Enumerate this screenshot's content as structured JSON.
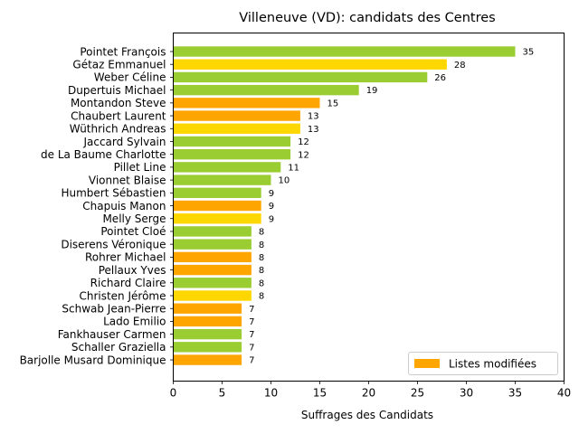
{
  "chart_data": {
    "type": "bar",
    "orientation": "horizontal",
    "title": "Villeneuve (VD): candidats des Centres",
    "xlabel": "Suffrages des Candidats",
    "ylabel": "",
    "xlim": [
      0,
      40
    ],
    "x_ticks": [
      0,
      5,
      10,
      15,
      20,
      25,
      30,
      35,
      40
    ],
    "grid": false,
    "legend_position": "bottom-right",
    "legend": [
      {
        "label": "Listes modifiées",
        "color": "#FFA500"
      }
    ],
    "categories": [
      "Pointet François",
      "Gétaz Emmanuel",
      "Weber Céline",
      "Dupertuis Michael",
      "Montandon Steve",
      "Chaubert Laurent",
      "Wüthrich Andreas",
      "Jaccard Sylvain",
      "de La Baume Charlotte",
      "Pillet Line",
      "Vionnet Blaise",
      "Humbert Sébastien",
      "Chapuis Manon",
      "Melly Serge",
      "Pointet Cloé",
      "Diserens Véronique",
      "Rohrer Michael",
      "Pellaux Yves",
      "Richard Claire",
      "Christen Jérôme",
      "Schwab Jean-Pierre",
      "Lado Emilio",
      "Fankhauser Carmen",
      "Schaller Graziella",
      "Barjolle Musard Dominique"
    ],
    "values": [
      35,
      28,
      26,
      19,
      15,
      13,
      13,
      12,
      12,
      11,
      10,
      9,
      9,
      9,
      8,
      8,
      8,
      8,
      8,
      8,
      7,
      7,
      7,
      7,
      7
    ],
    "colors": [
      "#9ACD32",
      "#FFD700",
      "#9ACD32",
      "#9ACD32",
      "#FFA500",
      "#FFA500",
      "#FFD700",
      "#9ACD32",
      "#9ACD32",
      "#9ACD32",
      "#9ACD32",
      "#9ACD32",
      "#FFA500",
      "#FFD700",
      "#9ACD32",
      "#9ACD32",
      "#FFA500",
      "#FFA500",
      "#9ACD32",
      "#FFD700",
      "#FFA500",
      "#FFA500",
      "#9ACD32",
      "#9ACD32",
      "#FFA500"
    ]
  }
}
